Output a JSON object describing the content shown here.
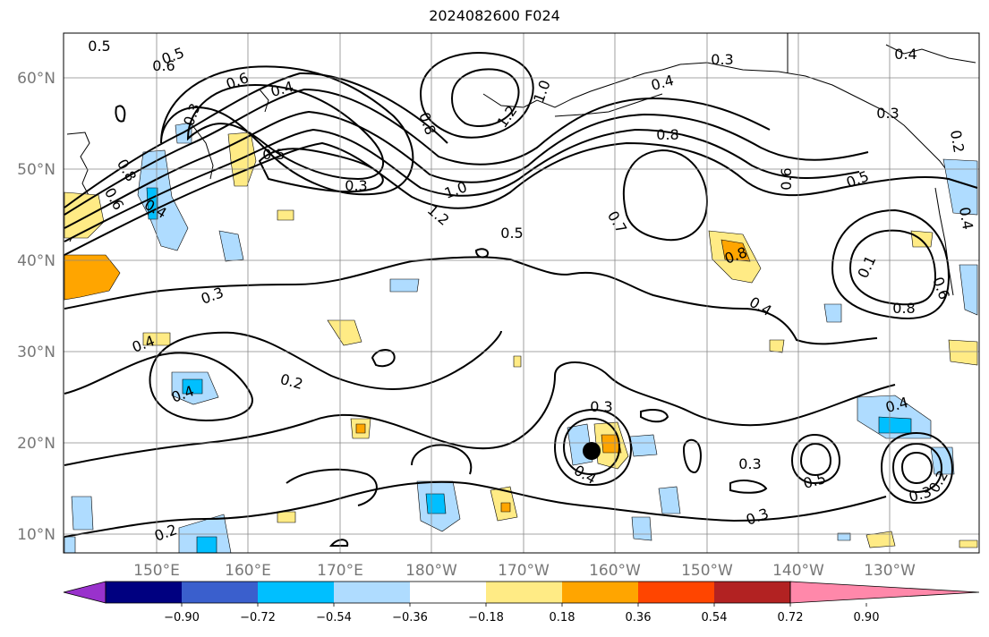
{
  "title": "2024082600 F024",
  "map": {
    "lat_labels": [
      "60°N",
      "50°N",
      "40°N",
      "30°N",
      "20°N",
      "10°N"
    ],
    "lon_labels": [
      "150°E",
      "160°E",
      "170°E",
      "180°W",
      "170°W",
      "160°W",
      "150°W",
      "140°W",
      "130°W"
    ],
    "gridlines": true,
    "storm_marker": {
      "lat": 19,
      "lon": "162°W"
    },
    "contour_labels": [
      "0.5",
      "0.5",
      "0.6",
      "0.6",
      "0.4",
      "0.3",
      "0.5",
      "0.3",
      "0.8",
      "1.2",
      "1.0",
      "0.3",
      "0.2",
      "0.4",
      "0.4",
      "0.2",
      "0.8",
      "0.6",
      "0.4",
      "0.8",
      "0.6",
      "0.7",
      "1.0",
      "1.2",
      "0.5",
      "0.4",
      "0.8",
      "0.4",
      "0.1",
      "0.6",
      "0.8",
      "0.3",
      "0.3",
      "0.4",
      "0.5",
      "0.3",
      "0.3",
      "0.4",
      "0.4",
      "0.3",
      "0.2",
      "0.5",
      "0.4",
      "0.3",
      "0.2"
    ]
  },
  "colorbar": {
    "ticks": [
      "−0.90",
      "−0.72",
      "−0.54",
      "−0.36",
      "−0.18",
      "0.18",
      "0.36",
      "0.54",
      "0.72",
      "0.90"
    ],
    "colors": [
      "#9932cc",
      "#000080",
      "#3a5fcd",
      "#00bfff",
      "#afdcff",
      "#ffffff",
      "#ffeb85",
      "#ffa500",
      "#ff4500",
      "#b22222",
      "#ff88aa"
    ]
  }
}
